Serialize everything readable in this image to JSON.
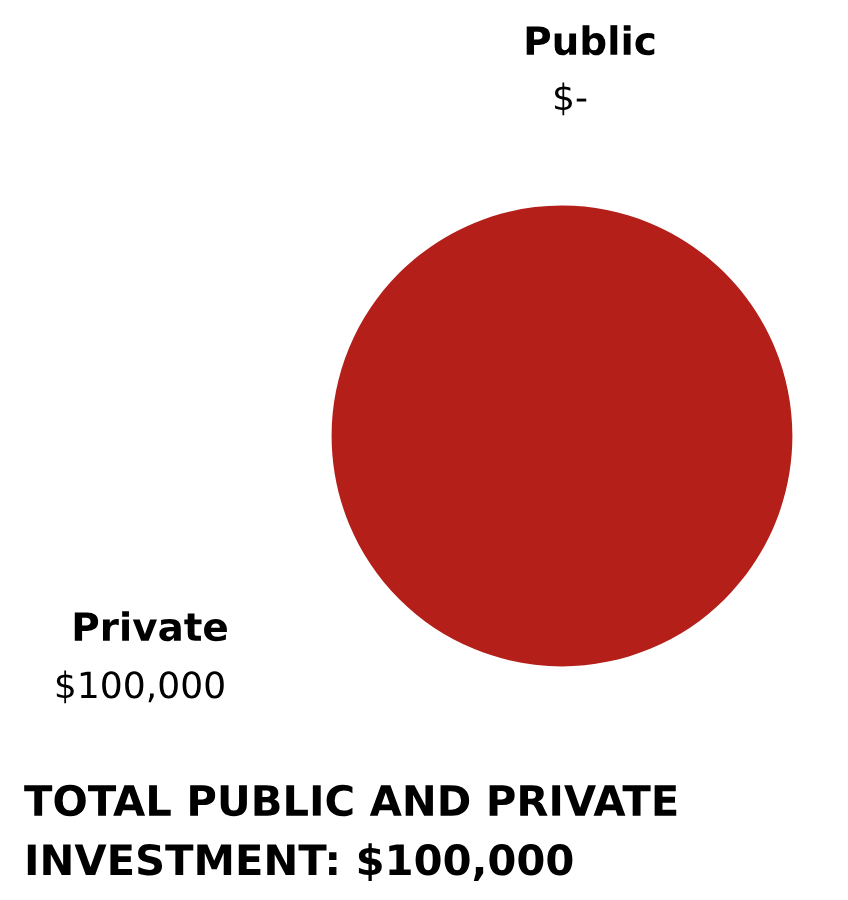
{
  "chart_data": {
    "type": "pie",
    "title": "TOTAL PUBLIC AND PRIVATE INVESTMENT: $100,000",
    "categories": [
      "Public",
      "Private"
    ],
    "values": [
      0,
      100000
    ],
    "value_labels": [
      "$-",
      "$100,000"
    ],
    "colors": [
      "#b41f1a",
      "#b41f1a"
    ],
    "legend": false
  }
}
